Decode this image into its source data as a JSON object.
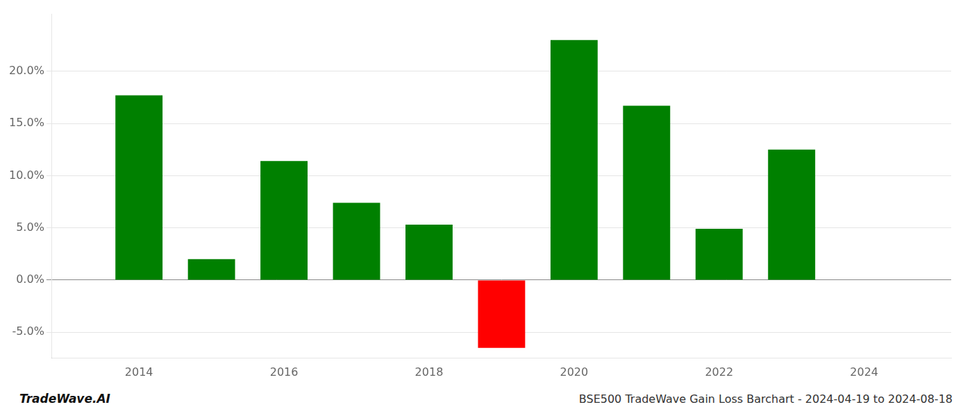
{
  "chart_data": {
    "type": "bar",
    "title": "BSE500 TradeWave Gain Loss Barchart - 2024-04-19 to 2024-08-18",
    "annotations": [
      "TradeWave.AI"
    ],
    "x": [
      2014,
      2015,
      2016,
      2017,
      2018,
      2019,
      2020,
      2021,
      2022,
      2023
    ],
    "values": [
      17.7,
      2.0,
      11.4,
      7.4,
      5.3,
      -6.5,
      23.0,
      16.7,
      4.9,
      12.5
    ],
    "colors": [
      "#008000",
      "#008000",
      "#008000",
      "#008000",
      "#008000",
      "#ff0000",
      "#008000",
      "#008000",
      "#008000",
      "#008000"
    ],
    "xlim": [
      2012.8,
      2025.2
    ],
    "xticks": [
      2014,
      2016,
      2018,
      2020,
      2022,
      2024
    ],
    "ylim": [
      -7.5,
      25.5
    ],
    "yticks": [
      {
        "value": -5.0,
        "label": "-5.0%"
      },
      {
        "value": 0.0,
        "label": "0.0%"
      },
      {
        "value": 5.0,
        "label": "5.0%"
      },
      {
        "value": 10.0,
        "label": "10.0%"
      },
      {
        "value": 15.0,
        "label": "15.0%"
      },
      {
        "value": 20.0,
        "label": "20.0%"
      }
    ],
    "grid": true
  }
}
